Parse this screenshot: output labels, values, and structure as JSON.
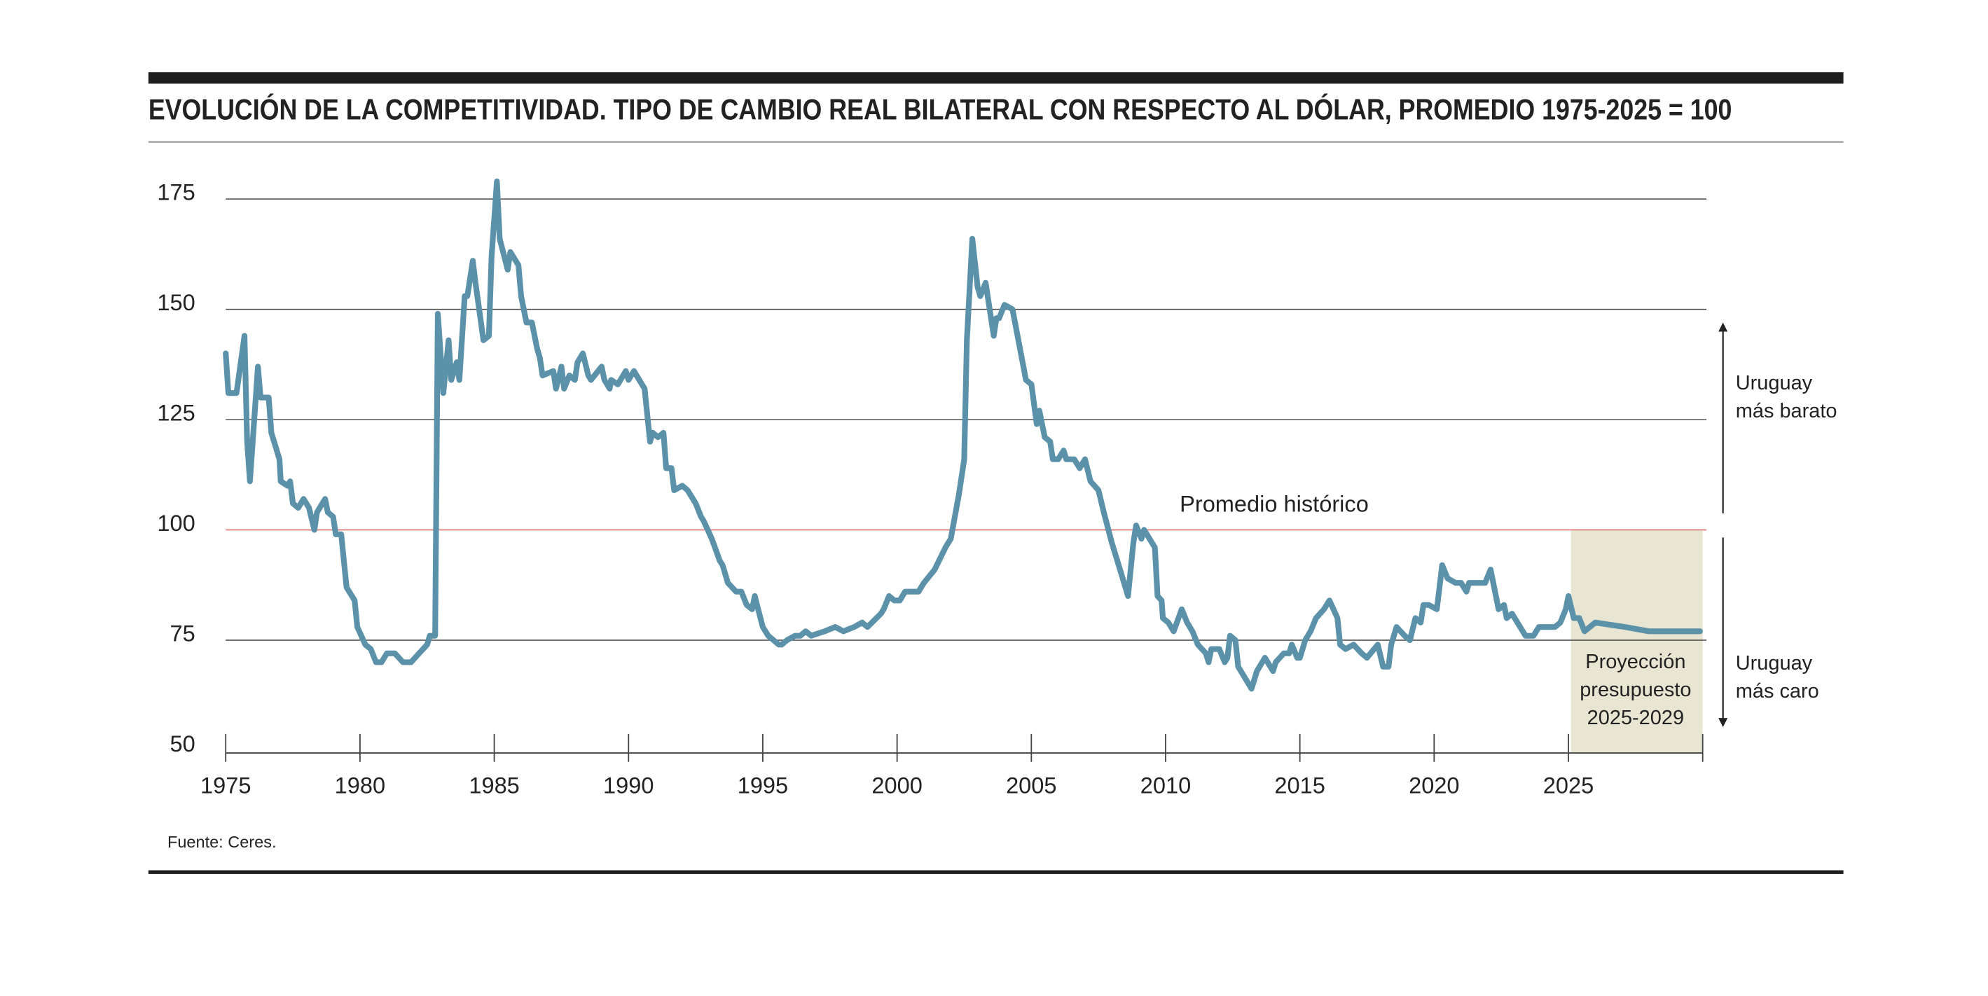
{
  "chart_data": {
    "type": "line",
    "title": "EVOLUCIÓN DE LA COMPETITIVIDAD. TIPO DE CAMBIO REAL BILATERAL CON RESPECTO AL DÓLAR, PROMEDIO 1975-2025 = 100",
    "source": "Fuente: Ceres.",
    "xlim": [
      1975,
      2030
    ],
    "xticks": [
      1975,
      1980,
      1985,
      1990,
      1995,
      2000,
      2005,
      2010,
      2015,
      2020,
      2025
    ],
    "ylim": [
      50,
      175
    ],
    "yticks": [
      50,
      75,
      100,
      125,
      150,
      175
    ],
    "grid": true,
    "reference_line": {
      "value": 100,
      "label": "Promedio histórico",
      "color": "#e07a7a"
    },
    "projection": {
      "xrange": [
        2025,
        2030
      ],
      "label": [
        "Proyección",
        "presupuesto",
        "2025-2029"
      ],
      "color": "#e8e5d2"
    },
    "side_labels": {
      "above": [
        "Uruguay",
        "más barato"
      ],
      "below": [
        "Uruguay",
        "más caro"
      ]
    },
    "series": [
      {
        "color": "#5b91a9",
        "x": [
          1975.0,
          1975.1,
          1975.4,
          1975.7,
          1975.8,
          1975.9,
          1976.2,
          1976.3,
          1976.6,
          1976.7,
          1977.0,
          1977.05,
          1977.3,
          1977.4,
          1977.5,
          1977.7,
          1977.9,
          1978.1,
          1978.3,
          1978.4,
          1978.7,
          1978.8,
          1979.0,
          1979.1,
          1979.3,
          1979.4,
          1979.5,
          1979.8,
          1979.9,
          1980.2,
          1980.4,
          1980.6,
          1980.8,
          1981.0,
          1981.3,
          1981.6,
          1981.9,
          1982.2,
          1982.5,
          1982.6,
          1982.8,
          1982.9,
          1983.1,
          1983.3,
          1983.4,
          1983.6,
          1983.7,
          1983.9,
          1984.0,
          1984.2,
          1984.3,
          1984.6,
          1984.8,
          1984.9,
          1985.1,
          1985.2,
          1985.5,
          1985.6,
          1985.9,
          1986.0,
          1986.2,
          1986.4,
          1986.6,
          1986.7,
          1986.8,
          1987.2,
          1987.3,
          1987.5,
          1987.6,
          1987.8,
          1988.0,
          1988.1,
          1988.3,
          1988.5,
          1988.6,
          1989.0,
          1989.1,
          1989.3,
          1989.35,
          1989.6,
          1989.9,
          1990.0,
          1990.2,
          1990.4,
          1990.6,
          1990.8,
          1990.9,
          1991.1,
          1991.3,
          1991.4,
          1991.6,
          1991.7,
          1992.0,
          1992.2,
          1992.5,
          1992.7,
          1992.8,
          1993.1,
          1993.4,
          1993.5,
          1993.7,
          1994.0,
          1994.2,
          1994.4,
          1994.6,
          1994.7,
          1995.0,
          1995.2,
          1995.4,
          1995.6,
          1995.7,
          1995.9,
          1996.2,
          1996.4,
          1996.6,
          1996.8,
          1997.3,
          1997.7,
          1998.0,
          1998.4,
          1998.7,
          1998.9,
          1999.4,
          1999.5,
          1999.7,
          1999.9,
          2000.1,
          2000.3,
          2000.5,
          2000.8,
          2001.0,
          2001.4,
          2001.8,
          2002.0,
          2002.3,
          2002.5,
          2002.6,
          2002.8,
          2003.0,
          2003.1,
          2003.3,
          2003.6,
          2003.7,
          2003.8,
          2004.0,
          2004.3,
          2004.8,
          2005.0,
          2005.2,
          2005.3,
          2005.5,
          2005.7,
          2005.8,
          2006.0,
          2006.2,
          2006.3,
          2006.6,
          2006.8,
          2007.0,
          2007.2,
          2007.5,
          2007.7,
          2008.0,
          2008.3,
          2008.5,
          2008.6,
          2008.8,
          2008.9,
          2009.1,
          2009.2,
          2009.6,
          2009.7,
          2009.85,
          2009.9,
          2010.1,
          2010.3,
          2010.6,
          2010.8,
          2011.0,
          2011.2,
          2011.5,
          2011.6,
          2011.7,
          2012.0,
          2012.2,
          2012.3,
          2012.4,
          2012.6,
          2012.7,
          2013.0,
          2013.2,
          2013.4,
          2013.6,
          2013.7,
          2014.0,
          2014.1,
          2014.4,
          2014.6,
          2014.7,
          2014.9,
          2015.0,
          2015.2,
          2015.4,
          2015.6,
          2015.9,
          2016.1,
          2016.4,
          2016.5,
          2016.7,
          2017.0,
          2017.3,
          2017.5,
          2017.9,
          2018.1,
          2018.3,
          2018.4,
          2018.6,
          2018.9,
          2019.1,
          2019.3,
          2019.5,
          2019.6,
          2019.8,
          2020.1,
          2020.3,
          2020.5,
          2020.8,
          2021.0,
          2021.2,
          2021.3,
          2021.7,
          2021.9,
          2022.1,
          2022.4,
          2022.6,
          2022.7,
          2022.9,
          2023.2,
          2023.4,
          2023.7,
          2023.9,
          2024.1,
          2024.5,
          2024.7,
          2024.9,
          2025.0,
          2025.2,
          2025.4,
          2025.6,
          2026.0,
          2027.1,
          2028.0,
          2029.9
        ],
        "values": [
          140,
          131,
          131,
          144,
          120,
          111,
          137,
          130,
          130,
          122,
          116,
          111,
          110,
          111,
          106,
          105,
          107,
          105,
          100,
          104,
          107,
          104,
          103,
          99,
          99,
          93,
          87,
          84,
          78,
          74,
          73,
          70,
          70,
          72,
          72,
          70,
          70,
          72,
          74,
          76,
          76,
          149,
          131,
          143,
          134,
          138,
          134,
          153,
          153,
          161,
          156,
          143,
          144,
          162,
          179,
          166,
          159,
          163,
          160,
          153,
          147,
          147,
          141,
          139,
          135,
          136,
          132,
          137,
          132,
          135,
          134,
          138,
          140,
          135,
          134,
          137,
          134,
          132,
          134,
          133,
          136,
          134,
          136,
          134,
          132,
          120,
          122,
          121,
          122,
          114,
          114,
          109,
          110,
          109,
          106,
          103,
          102,
          98,
          93,
          92,
          88,
          86,
          86,
          83,
          82,
          85,
          78,
          76,
          75,
          74,
          74,
          75,
          76,
          76,
          77,
          76,
          77,
          78,
          77,
          78,
          79,
          78,
          81,
          82,
          85,
          84,
          84,
          86,
          86,
          86,
          88,
          91,
          96,
          98,
          108,
          116,
          143,
          166,
          155,
          153,
          156,
          144,
          148,
          148,
          151,
          150,
          134,
          133,
          124,
          127,
          121,
          120,
          116,
          116,
          118,
          116,
          116,
          114,
          116,
          111,
          109,
          104,
          97,
          91,
          87,
          85,
          97,
          101,
          98,
          100,
          96,
          85,
          84,
          80,
          79,
          77,
          82,
          79,
          77,
          74,
          72,
          70,
          73,
          73,
          70,
          71,
          76,
          75,
          69,
          66,
          64,
          68,
          70,
          71,
          68,
          70,
          72,
          72,
          74,
          71,
          71,
          75,
          77,
          80,
          82,
          84,
          80,
          74,
          73,
          74,
          72,
          71,
          74,
          69,
          69,
          74,
          78,
          76,
          75,
          80,
          79,
          83,
          83,
          82,
          92,
          89,
          88,
          88,
          86,
          88,
          88,
          88,
          91,
          82,
          83,
          80,
          81,
          78,
          76,
          76,
          78,
          78,
          78,
          79,
          82,
          85,
          80,
          80,
          77,
          79,
          78,
          77,
          77
        ]
      }
    ]
  }
}
